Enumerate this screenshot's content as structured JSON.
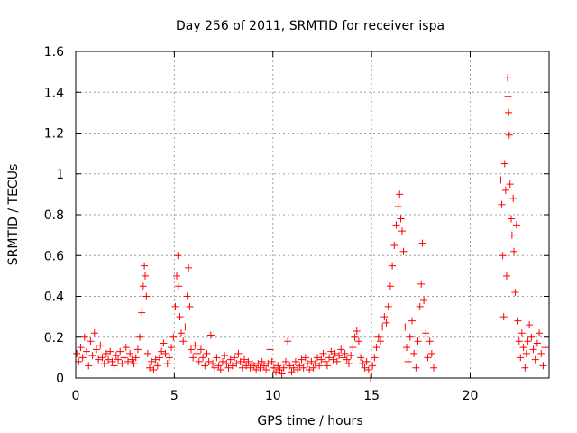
{
  "chart_data": {
    "type": "scatter",
    "title": "Day 256 of 2011, SRMTID for receiver ispa",
    "xlabel": "GPS time / hours",
    "ylabel": "SRMTID / TECUs",
    "xlim": [
      0,
      24
    ],
    "ylim": [
      0,
      1.6
    ],
    "xticks": [
      0,
      5,
      10,
      15,
      20
    ],
    "xtick_labels": [
      "0",
      "5",
      "10",
      "15",
      "20"
    ],
    "yticks": [
      0,
      0.2,
      0.4,
      0.6,
      0.8,
      1.0,
      1.2,
      1.4,
      1.6
    ],
    "ytick_labels": [
      "0",
      "0.2",
      "0.4",
      "0.6",
      "0.8",
      "1",
      "1.2",
      "1.4",
      "1.6"
    ],
    "grid": true,
    "marker": "+",
    "color": "#ff0000",
    "series": [
      {
        "name": "SRMTID",
        "points": [
          [
            0.05,
            0.12
          ],
          [
            0.15,
            0.08
          ],
          [
            0.25,
            0.15
          ],
          [
            0.35,
            0.1
          ],
          [
            0.45,
            0.2
          ],
          [
            0.55,
            0.13
          ],
          [
            0.65,
            0.06
          ],
          [
            0.75,
            0.18
          ],
          [
            0.85,
            0.11
          ],
          [
            0.95,
            0.22
          ],
          [
            1.05,
            0.14
          ],
          [
            1.15,
            0.09
          ],
          [
            1.25,
            0.16
          ],
          [
            1.35,
            0.1
          ],
          [
            1.45,
            0.07
          ],
          [
            1.55,
            0.12
          ],
          [
            1.65,
            0.09
          ],
          [
            1.75,
            0.13
          ],
          [
            1.85,
            0.08
          ],
          [
            1.95,
            0.06
          ],
          [
            2.05,
            0.11
          ],
          [
            2.15,
            0.09
          ],
          [
            2.25,
            0.13
          ],
          [
            2.35,
            0.07
          ],
          [
            2.45,
            0.1
          ],
          [
            2.55,
            0.15
          ],
          [
            2.65,
            0.08
          ],
          [
            2.75,
            0.12
          ],
          [
            2.85,
            0.09
          ],
          [
            2.95,
            0.07
          ],
          [
            3.05,
            0.1
          ],
          [
            3.15,
            0.14
          ],
          [
            3.25,
            0.2
          ],
          [
            3.35,
            0.32
          ],
          [
            3.42,
            0.45
          ],
          [
            3.48,
            0.55
          ],
          [
            3.52,
            0.5
          ],
          [
            3.58,
            0.4
          ],
          [
            3.65,
            0.12
          ],
          [
            3.75,
            0.05
          ],
          [
            3.85,
            0.08
          ],
          [
            3.95,
            0.04
          ],
          [
            4.05,
            0.09
          ],
          [
            4.15,
            0.06
          ],
          [
            4.25,
            0.1
          ],
          [
            4.35,
            0.13
          ],
          [
            4.45,
            0.17
          ],
          [
            4.55,
            0.12
          ],
          [
            4.65,
            0.07
          ],
          [
            4.75,
            0.1
          ],
          [
            4.85,
            0.15
          ],
          [
            4.95,
            0.2
          ],
          [
            5.05,
            0.35
          ],
          [
            5.12,
            0.5
          ],
          [
            5.18,
            0.6
          ],
          [
            5.22,
            0.45
          ],
          [
            5.28,
            0.3
          ],
          [
            5.35,
            0.22
          ],
          [
            5.45,
            0.18
          ],
          [
            5.55,
            0.25
          ],
          [
            5.65,
            0.4
          ],
          [
            5.72,
            0.54
          ],
          [
            5.78,
            0.35
          ],
          [
            5.85,
            0.14
          ],
          [
            5.95,
            0.1
          ],
          [
            6.05,
            0.16
          ],
          [
            6.15,
            0.12
          ],
          [
            6.25,
            0.08
          ],
          [
            6.35,
            0.14
          ],
          [
            6.45,
            0.1
          ],
          [
            6.55,
            0.06
          ],
          [
            6.65,
            0.12
          ],
          [
            6.75,
            0.08
          ],
          [
            6.85,
            0.21
          ],
          [
            6.95,
            0.07
          ],
          [
            7.05,
            0.05
          ],
          [
            7.15,
            0.1
          ],
          [
            7.25,
            0.06
          ],
          [
            7.35,
            0.04
          ],
          [
            7.45,
            0.08
          ],
          [
            7.55,
            0.11
          ],
          [
            7.65,
            0.07
          ],
          [
            7.75,
            0.05
          ],
          [
            7.85,
            0.09
          ],
          [
            7.95,
            0.06
          ],
          [
            8.05,
            0.1
          ],
          [
            8.15,
            0.07
          ],
          [
            8.25,
            0.12
          ],
          [
            8.35,
            0.08
          ],
          [
            8.45,
            0.05
          ],
          [
            8.55,
            0.09
          ],
          [
            8.65,
            0.06
          ],
          [
            8.75,
            0.08
          ],
          [
            8.85,
            0.05
          ],
          [
            8.95,
            0.07
          ],
          [
            9.05,
            0.06
          ],
          [
            9.15,
            0.04
          ],
          [
            9.25,
            0.07
          ],
          [
            9.35,
            0.05
          ],
          [
            9.45,
            0.08
          ],
          [
            9.55,
            0.06
          ],
          [
            9.65,
            0.04
          ],
          [
            9.75,
            0.07
          ],
          [
            9.85,
            0.14
          ],
          [
            9.95,
            0.08
          ],
          [
            10.05,
            0.05
          ],
          [
            10.15,
            0.03
          ],
          [
            10.25,
            0.06
          ],
          [
            10.35,
            0.04
          ],
          [
            10.45,
            0.02
          ],
          [
            10.55,
            0.05
          ],
          [
            10.65,
            0.08
          ],
          [
            10.75,
            0.18
          ],
          [
            10.85,
            0.06
          ],
          [
            10.95,
            0.03
          ],
          [
            11.05,
            0.05
          ],
          [
            11.15,
            0.08
          ],
          [
            11.25,
            0.04
          ],
          [
            11.35,
            0.06
          ],
          [
            11.45,
            0.09
          ],
          [
            11.55,
            0.05
          ],
          [
            11.65,
            0.1
          ],
          [
            11.75,
            0.07
          ],
          [
            11.85,
            0.04
          ],
          [
            11.95,
            0.08
          ],
          [
            12.05,
            0.05
          ],
          [
            12.15,
            0.07
          ],
          [
            12.25,
            0.1
          ],
          [
            12.35,
            0.06
          ],
          [
            12.45,
            0.09
          ],
          [
            12.55,
            0.12
          ],
          [
            12.65,
            0.08
          ],
          [
            12.75,
            0.06
          ],
          [
            12.85,
            0.1
          ],
          [
            12.95,
            0.13
          ],
          [
            13.05,
            0.09
          ],
          [
            13.15,
            0.12
          ],
          [
            13.25,
            0.08
          ],
          [
            13.35,
            0.11
          ],
          [
            13.45,
            0.14
          ],
          [
            13.55,
            0.1
          ],
          [
            13.65,
            0.12
          ],
          [
            13.75,
            0.09
          ],
          [
            13.85,
            0.07
          ],
          [
            13.95,
            0.11
          ],
          [
            14.05,
            0.15
          ],
          [
            14.15,
            0.2
          ],
          [
            14.25,
            0.23
          ],
          [
            14.35,
            0.18
          ],
          [
            14.45,
            0.1
          ],
          [
            14.55,
            0.07
          ],
          [
            14.65,
            0.05
          ],
          [
            14.75,
            0.08
          ],
          [
            14.85,
            0.04
          ],
          [
            14.95,
            0.0
          ],
          [
            15.05,
            0.06
          ],
          [
            15.15,
            0.1
          ],
          [
            15.25,
            0.15
          ],
          [
            15.35,
            0.2
          ],
          [
            15.45,
            0.18
          ],
          [
            15.55,
            0.25
          ],
          [
            15.65,
            0.3
          ],
          [
            15.75,
            0.27
          ],
          [
            15.85,
            0.35
          ],
          [
            15.95,
            0.45
          ],
          [
            16.05,
            0.55
          ],
          [
            16.15,
            0.65
          ],
          [
            16.25,
            0.75
          ],
          [
            16.35,
            0.84
          ],
          [
            16.42,
            0.9
          ],
          [
            16.48,
            0.78
          ],
          [
            16.55,
            0.72
          ],
          [
            16.62,
            0.62
          ],
          [
            16.7,
            0.25
          ],
          [
            16.78,
            0.15
          ],
          [
            16.85,
            0.08
          ],
          [
            16.95,
            0.2
          ],
          [
            17.05,
            0.28
          ],
          [
            17.15,
            0.12
          ],
          [
            17.25,
            0.05
          ],
          [
            17.35,
            0.18
          ],
          [
            17.45,
            0.35
          ],
          [
            17.52,
            0.46
          ],
          [
            17.58,
            0.66
          ],
          [
            17.65,
            0.38
          ],
          [
            17.75,
            0.22
          ],
          [
            17.85,
            0.1
          ],
          [
            17.95,
            0.18
          ],
          [
            18.05,
            0.12
          ],
          [
            18.15,
            0.05
          ],
          [
            21.55,
            0.97
          ],
          [
            21.6,
            0.85
          ],
          [
            21.65,
            0.6
          ],
          [
            21.7,
            0.3
          ],
          [
            21.75,
            1.05
          ],
          [
            21.8,
            0.92
          ],
          [
            21.85,
            0.5
          ],
          [
            21.9,
            1.47
          ],
          [
            21.92,
            1.38
          ],
          [
            21.95,
            1.3
          ],
          [
            21.98,
            1.19
          ],
          [
            22.02,
            0.95
          ],
          [
            22.08,
            0.78
          ],
          [
            22.12,
            0.7
          ],
          [
            22.18,
            0.88
          ],
          [
            22.22,
            0.62
          ],
          [
            22.28,
            0.42
          ],
          [
            22.35,
            0.75
          ],
          [
            22.42,
            0.28
          ],
          [
            22.48,
            0.18
          ],
          [
            22.55,
            0.1
          ],
          [
            22.62,
            0.22
          ],
          [
            22.7,
            0.15
          ],
          [
            22.78,
            0.05
          ],
          [
            22.85,
            0.12
          ],
          [
            22.92,
            0.18
          ],
          [
            23.0,
            0.26
          ],
          [
            23.1,
            0.2
          ],
          [
            23.2,
            0.14
          ],
          [
            23.3,
            0.09
          ],
          [
            23.4,
            0.17
          ],
          [
            23.5,
            0.22
          ],
          [
            23.6,
            0.12
          ],
          [
            23.7,
            0.06
          ],
          [
            23.8,
            0.15
          ]
        ]
      }
    ]
  }
}
